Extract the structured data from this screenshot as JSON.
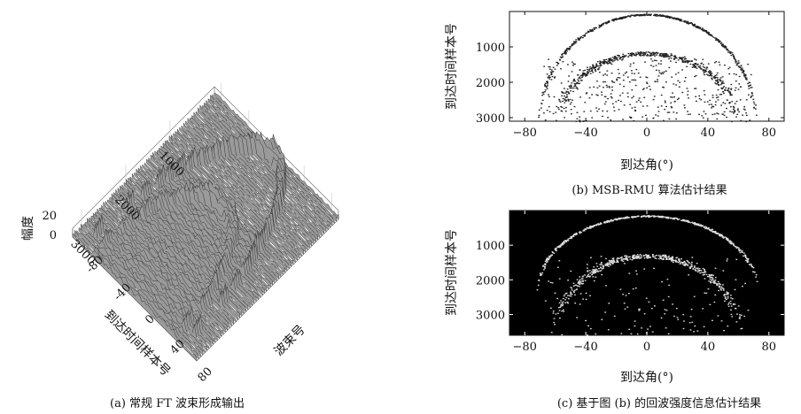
{
  "chart_data": [
    {
      "id": "a",
      "type": "surface3d",
      "caption": "(a) 常规 FT 波束形成输出",
      "zlabel": "幅度",
      "ylabel": "到达时间样本号",
      "xlabel": "波束号",
      "z_ticks": [
        "20",
        "0"
      ],
      "z_tick_values": [
        20,
        0
      ],
      "y_ticks": [
        "1000",
        "2000",
        "3000"
      ],
      "y_tick_values": [
        1000,
        2000,
        3000
      ],
      "x_ticks": [
        "-80",
        "-40",
        "0",
        "40",
        "80"
      ],
      "x_tick_values": [
        -80,
        -40,
        0,
        40,
        80
      ],
      "xlim": [
        -90,
        90
      ],
      "ylim": [
        0,
        3200
      ],
      "zlim": [
        0,
        20
      ]
    },
    {
      "id": "b",
      "type": "scatter",
      "caption": "(b) MSB-RMU 算法估计结果",
      "xlabel": "到达角(°)",
      "ylabel": "到达时间样本号",
      "x_ticks": [
        "−80",
        "−40",
        "0",
        "40",
        "80"
      ],
      "x_tick_values": [
        -80,
        -40,
        0,
        40,
        80
      ],
      "y_ticks": [
        "1000",
        "2000",
        "3000"
      ],
      "y_tick_values": [
        1000,
        2000,
        3000
      ],
      "xlim": [
        -90,
        90
      ],
      "ylim": [
        0,
        3100
      ],
      "y_reversed": true,
      "background": "#ffffff",
      "marker_color": "#222222",
      "arcs": [
        {
          "name": "",
          "apex_time": 80,
          "half_width_deg": 71,
          "edge_time": 3100
        },
        {
          "name": "",
          "apex_time": 1180,
          "half_width_deg": 58,
          "edge_time": 3100
        }
      ]
    },
    {
      "id": "c",
      "type": "scatter",
      "caption": "(c) 基于图 (b) 的回波强度信息估计结果",
      "xlabel": "到达角(°)",
      "ylabel": "到达时间样本号",
      "x_ticks": [
        "−80",
        "−40",
        "0",
        "40",
        "80"
      ],
      "x_tick_values": [
        -80,
        -40,
        0,
        40,
        80
      ],
      "y_ticks": [
        "1000",
        "2000",
        "3000"
      ],
      "y_tick_values": [
        1000,
        2000,
        3000
      ],
      "xlim": [
        -90,
        90
      ],
      "ylim": [
        0,
        3600
      ],
      "y_reversed": true,
      "background": "#000000",
      "marker_color": "#dddddd",
      "arcs": [
        {
          "name": "",
          "apex_time": 150,
          "half_width_deg": 72,
          "edge_time": 2300
        },
        {
          "name": "",
          "apex_time": 1300,
          "half_width_deg": 60,
          "edge_time": 3600
        }
      ]
    }
  ]
}
